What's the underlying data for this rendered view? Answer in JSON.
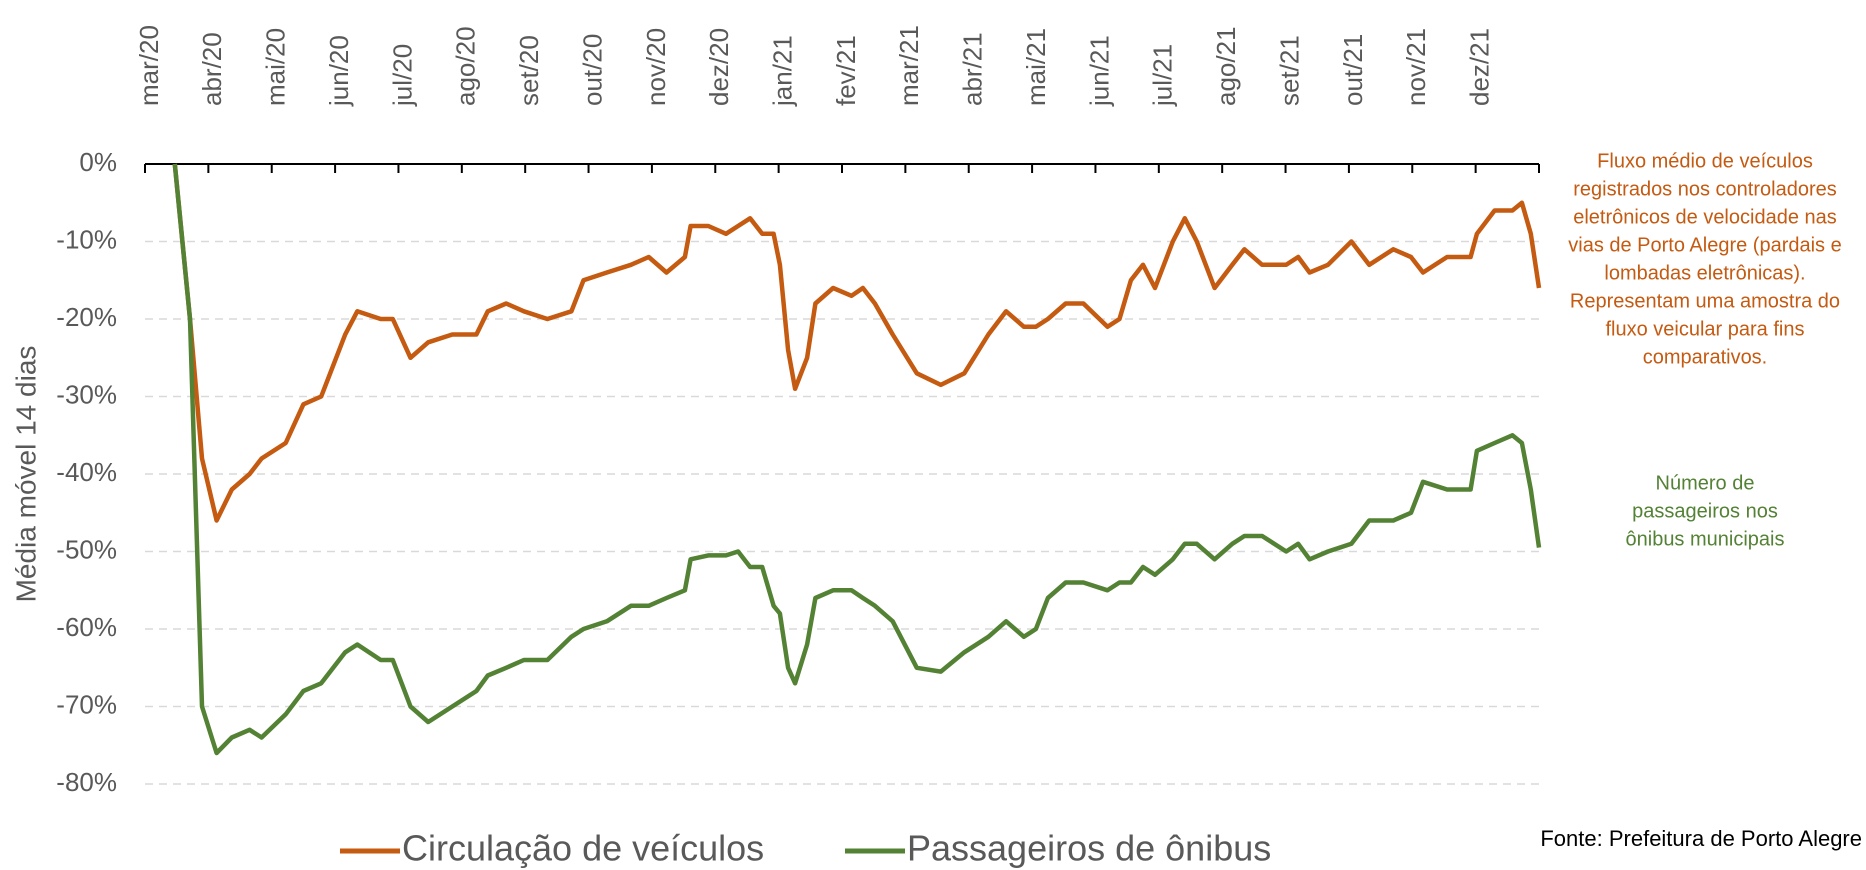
{
  "chart_data": {
    "type": "line",
    "y_label": "Média móvel 14 dias",
    "xticks": [
      {
        "value": 0,
        "label": "mar/20"
      },
      {
        "value": 1,
        "label": "abr/20"
      },
      {
        "value": 2,
        "label": "mai/20"
      },
      {
        "value": 3,
        "label": "jun/20"
      },
      {
        "value": 4,
        "label": "jul/20"
      },
      {
        "value": 5,
        "label": "ago/20"
      },
      {
        "value": 6,
        "label": "set/20"
      },
      {
        "value": 7,
        "label": "out/20"
      },
      {
        "value": 8,
        "label": "nov/20"
      },
      {
        "value": 9,
        "label": "dez/20"
      },
      {
        "value": 10,
        "label": "jan/21"
      },
      {
        "value": 11,
        "label": "fev/21"
      },
      {
        "value": 12,
        "label": "mar/21"
      },
      {
        "value": 13,
        "label": "abr/21"
      },
      {
        "value": 14,
        "label": "mai/21"
      },
      {
        "value": 15,
        "label": "jun/21"
      },
      {
        "value": 16,
        "label": "jul/21"
      },
      {
        "value": 17,
        "label": "ago/21"
      },
      {
        "value": 18,
        "label": "set/21"
      },
      {
        "value": 19,
        "label": "out/21"
      },
      {
        "value": 20,
        "label": "nov/21"
      },
      {
        "value": 21,
        "label": "dez/21"
      }
    ],
    "xlim": [
      0,
      22
    ],
    "ylim": [
      -80,
      0
    ],
    "yticks": [
      {
        "value": 0,
        "label": "0%"
      },
      {
        "value": -10,
        "label": "-10%"
      },
      {
        "value": -20,
        "label": "-20%"
      },
      {
        "value": -30,
        "label": "-30%"
      },
      {
        "value": -40,
        "label": "-40%"
      },
      {
        "value": -50,
        "label": "-50%"
      },
      {
        "value": -60,
        "label": "-60%"
      },
      {
        "value": -70,
        "label": "-70%"
      },
      {
        "value": -80,
        "label": "-80%"
      }
    ],
    "grid": true,
    "x": [
      0.47,
      0.71,
      0.9,
      1.13,
      1.37,
      1.65,
      1.84,
      2.22,
      2.5,
      2.78,
      3.16,
      3.35,
      3.72,
      3.91,
      4.19,
      4.47,
      4.85,
      5.23,
      5.41,
      5.7,
      5.98,
      6.35,
      6.73,
      6.92,
      7.29,
      7.67,
      7.95,
      8.23,
      8.52,
      8.61,
      8.89,
      9.17,
      9.36,
      9.55,
      9.74,
      9.92,
      10.02,
      10.15,
      10.26,
      10.45,
      10.58,
      10.86,
      11.15,
      11.33,
      11.52,
      11.8,
      12.18,
      12.56,
      12.93,
      13.31,
      13.59,
      13.87,
      14.06,
      14.25,
      14.53,
      14.81,
      15.19,
      15.38,
      15.56,
      15.75,
      15.94,
      16.22,
      16.41,
      16.6,
      16.88,
      17.16,
      17.35,
      17.63,
      18.01,
      18.2,
      18.38,
      18.67,
      19.04,
      19.32,
      19.7,
      19.98,
      20.17,
      20.55,
      20.92,
      21.02,
      21.3,
      21.58,
      21.73,
      21.87,
      22.0
    ],
    "series": [
      {
        "name": "Circulação de veículos",
        "color": "#c55a11",
        "values": [
          0,
          -20,
          -38,
          -46,
          -42,
          -40,
          -38,
          -36,
          -31,
          -30,
          -22,
          -19,
          -20,
          -20,
          -25,
          -23,
          -22,
          -22,
          -19,
          -18,
          -19,
          -20,
          -19,
          -15,
          -14,
          -13,
          -12,
          -14,
          -12,
          -8,
          -8,
          -9,
          -8,
          -7,
          -9,
          -9,
          -13,
          -24,
          -29,
          -25,
          -18,
          -16,
          -17,
          -16,
          -18,
          -22,
          -27,
          -28.5,
          -27,
          -22,
          -19,
          -21,
          -21,
          -20,
          -18,
          -18,
          -21,
          -20,
          -15,
          -13,
          -16,
          -10,
          -7,
          -10,
          -16,
          -13,
          -11,
          -13,
          -13,
          -12,
          -14,
          -13,
          -10,
          -13,
          -11,
          -12,
          -14,
          -12,
          -12,
          -9,
          -6,
          -6,
          -5,
          -9,
          -16
        ]
      },
      {
        "name": "Passageiros de ônibus",
        "color": "#548235",
        "values": [
          0,
          -20,
          -70,
          -76,
          -74,
          -73,
          -74,
          -71,
          -68,
          -67,
          -63,
          -62,
          -64,
          -64,
          -70,
          -72,
          -70,
          -68,
          -66,
          -65,
          -64,
          -64,
          -61,
          -60,
          -59,
          -57,
          -57,
          -56,
          -55,
          -51,
          -50.5,
          -50.5,
          -50,
          -52,
          -52,
          -57,
          -58,
          -65,
          -67,
          -62,
          -56,
          -55,
          -55,
          -56,
          -57,
          -59,
          -65,
          -65.5,
          -63,
          -61,
          -59,
          -61,
          -60,
          -56,
          -54,
          -54,
          -55,
          -54,
          -54,
          -52,
          -53,
          -51,
          -49,
          -49,
          -51,
          -49,
          -48,
          -48,
          -50,
          -49,
          -51,
          -50,
          -49,
          -46,
          -46,
          -45,
          -41,
          -42,
          -42,
          -37,
          -36,
          -35,
          -36,
          -42,
          -49.5
        ]
      }
    ],
    "annotations": [
      {
        "lines": [
          "Fluxo médio de veículos",
          "registrados nos controladores",
          "eletrônicos de velocidade nas",
          "vias de Porto Alegre (pardais e",
          "lombadas eletrônicas).",
          "Representam uma amostra do",
          "fluxo veicular para fins",
          "comparativos."
        ],
        "color": "#c55a11"
      },
      {
        "lines": [
          "Número de",
          "passageiros nos",
          "ônibus municipais"
        ],
        "color": "#548235"
      }
    ],
    "source": "Fonte: Prefeitura de Porto Alegre"
  }
}
